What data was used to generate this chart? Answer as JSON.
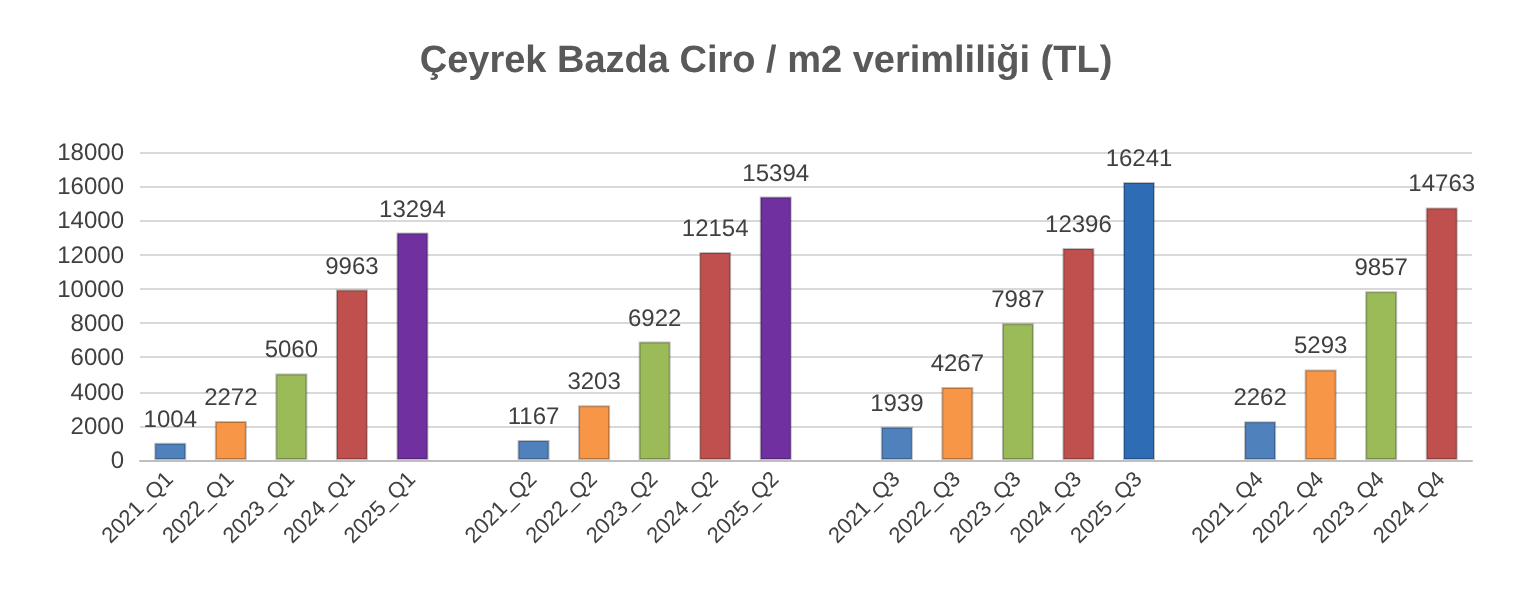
{
  "chart_data": {
    "type": "bar",
    "title": "Çeyrek Bazda Ciro / m2 verimliliği (TL)",
    "categories": [
      "2021_Q1",
      "2022_Q1",
      "2023_Q1",
      "2024_Q1",
      "2025_Q1",
      null,
      "2021_Q2",
      "2022_Q2",
      "2023_Q2",
      "2024_Q2",
      "2025_Q2",
      null,
      "2021_Q3",
      "2022_Q3",
      "2023_Q3",
      "2024_Q3",
      "2025_Q3",
      null,
      "2021_Q4",
      "2022_Q4",
      "2023_Q4",
      "2024_Q4"
    ],
    "values": [
      1004,
      2272,
      5060,
      9963,
      13294,
      null,
      1167,
      3203,
      6922,
      12154,
      15394,
      null,
      1939,
      4267,
      7987,
      12396,
      16241,
      null,
      2262,
      5293,
      9857,
      14763
    ],
    "colors": [
      "#4f81bd",
      "#f79646",
      "#9bbb59",
      "#c0504d",
      "#7030a0",
      null,
      "#4f81bd",
      "#f79646",
      "#9bbb59",
      "#c0504d",
      "#7030a0",
      null,
      "#4f81bd",
      "#f79646",
      "#9bbb59",
      "#c0504d",
      "#2e6db5",
      null,
      "#4f81bd",
      "#f79646",
      "#9bbb59",
      "#c0504d"
    ],
    "ylim": [
      0,
      18000
    ],
    "yticks": [
      0,
      2000,
      4000,
      6000,
      8000,
      10000,
      12000,
      14000,
      16000,
      18000
    ],
    "grid": "y",
    "data_labels": true
  }
}
